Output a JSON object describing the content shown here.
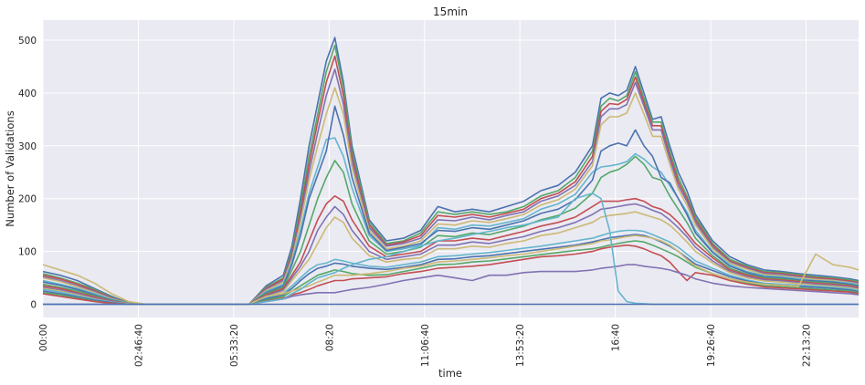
{
  "chart_data": {
    "type": "line",
    "title": "15min",
    "xlabel": "time",
    "ylabel": "Number of Validations",
    "x_tick_labels": [
      "00:00",
      "02:46:40",
      "05:33:20",
      "08:20",
      "11:06:40",
      "13:53:20",
      "16:40",
      "19:26:40",
      "22:13:20"
    ],
    "x_tick_seconds": [
      0,
      10000,
      20000,
      30000,
      40000,
      50000,
      60000,
      70000,
      80000
    ],
    "xlim_seconds": [
      0,
      85500
    ],
    "y_ticks": [
      0,
      100,
      200,
      300,
      400,
      500
    ],
    "ylim": [
      -25,
      538
    ],
    "grid": true,
    "background": "#EAEAF2",
    "palette": [
      "#4C72B0",
      "#55A868",
      "#C44E52",
      "#8172B2",
      "#CCB974",
      "#64B5CD"
    ],
    "sampling_interval": "15min",
    "x_hours": [
      0,
      0.5,
      1,
      1.5,
      2,
      2.5,
      3,
      3.5,
      4,
      4.5,
      5,
      5.5,
      6,
      6.5,
      7,
      7.25,
      7.5,
      7.75,
      8,
      8.25,
      8.5,
      8.75,
      9,
      9.5,
      10,
      10.5,
      11,
      11.5,
      12,
      12.5,
      13,
      13.5,
      14,
      14.5,
      15,
      15.5,
      16,
      16.25,
      16.5,
      16.75,
      17,
      17.25,
      17.5,
      17.75,
      18,
      18.25,
      18.5,
      18.75,
      19,
      19.5,
      20,
      20.5,
      21,
      21.5,
      22,
      22.5,
      23,
      23.5,
      23.75
    ],
    "series": [
      {
        "values": [
          62,
          55,
          45,
          30,
          15,
          3,
          0,
          0,
          0,
          0,
          0,
          0,
          0,
          35,
          55,
          110,
          200,
          300,
          380,
          460,
          505,
          420,
          300,
          160,
          120,
          125,
          140,
          185,
          175,
          180,
          175,
          185,
          195,
          215,
          225,
          250,
          300,
          390,
          400,
          395,
          405,
          450,
          400,
          350,
          355,
          300,
          250,
          215,
          170,
          120,
          90,
          75,
          65,
          62,
          58,
          55,
          52,
          48,
          45
        ]
      },
      {
        "values": [
          58,
          50,
          40,
          28,
          13,
          3,
          0,
          0,
          0,
          0,
          0,
          0,
          0,
          32,
          50,
          100,
          185,
          280,
          360,
          440,
          490,
          410,
          290,
          155,
          115,
          120,
          135,
          175,
          170,
          175,
          170,
          175,
          185,
          205,
          215,
          240,
          290,
          375,
          390,
          385,
          395,
          440,
          390,
          345,
          345,
          290,
          240,
          205,
          165,
          115,
          85,
          72,
          62,
          60,
          56,
          52,
          50,
          46,
          43
        ]
      },
      {
        "values": [
          55,
          48,
          38,
          26,
          12,
          2,
          0,
          0,
          0,
          0,
          0,
          0,
          0,
          30,
          48,
          95,
          175,
          265,
          345,
          420,
          470,
          395,
          280,
          150,
          112,
          118,
          130,
          168,
          165,
          170,
          165,
          172,
          180,
          200,
          210,
          232,
          280,
          365,
          380,
          378,
          388,
          430,
          382,
          338,
          338,
          282,
          232,
          200,
          160,
          112,
          82,
          70,
          60,
          58,
          54,
          50,
          48,
          44,
          41
        ]
      },
      {
        "values": [
          52,
          45,
          35,
          24,
          11,
          2,
          0,
          0,
          0,
          0,
          0,
          0,
          0,
          28,
          45,
          90,
          165,
          250,
          325,
          395,
          445,
          378,
          270,
          145,
          110,
          115,
          125,
          160,
          158,
          165,
          160,
          168,
          175,
          195,
          205,
          225,
          270,
          355,
          370,
          370,
          378,
          420,
          375,
          330,
          330,
          275,
          225,
          195,
          155,
          108,
          80,
          68,
          58,
          56,
          52,
          48,
          46,
          42,
          40
        ]
      },
      {
        "values": [
          50,
          43,
          33,
          22,
          10,
          2,
          0,
          0,
          0,
          0,
          0,
          0,
          0,
          26,
          42,
          85,
          155,
          235,
          300,
          360,
          410,
          360,
          258,
          140,
          105,
          110,
          120,
          152,
          150,
          158,
          155,
          162,
          170,
          188,
          198,
          218,
          262,
          340,
          355,
          355,
          362,
          400,
          360,
          318,
          318,
          265,
          218,
          188,
          150,
          105,
          78,
          66,
          56,
          54,
          50,
          47,
          45,
          41,
          38
        ]
      },
      {
        "values": [
          45,
          38,
          30,
          20,
          9,
          2,
          0,
          0,
          0,
          0,
          0,
          0,
          0,
          24,
          38,
          80,
          140,
          210,
          260,
          312,
          315,
          280,
          220,
          130,
          100,
          105,
          112,
          145,
          142,
          150,
          148,
          155,
          162,
          180,
          190,
          208,
          250,
          260,
          262,
          265,
          270,
          285,
          275,
          260,
          250,
          225,
          200,
          175,
          140,
          100,
          75,
          62,
          54,
          52,
          48,
          45,
          43,
          40,
          37
        ]
      },
      {
        "values": [
          42,
          36,
          28,
          18,
          8,
          1,
          0,
          0,
          0,
          0,
          0,
          0,
          0,
          22,
          35,
          75,
          130,
          200,
          245,
          290,
          375,
          320,
          240,
          135,
          102,
          108,
          115,
          140,
          138,
          145,
          142,
          150,
          158,
          172,
          180,
          198,
          235,
          290,
          300,
          305,
          300,
          330,
          300,
          280,
          240,
          230,
          200,
          170,
          135,
          98,
          72,
          60,
          52,
          50,
          46,
          44,
          42,
          38,
          35
        ]
      },
      {
        "values": [
          38,
          32,
          25,
          16,
          7,
          1,
          0,
          0,
          0,
          0,
          0,
          0,
          0,
          20,
          32,
          65,
          100,
          150,
          200,
          240,
          272,
          250,
          190,
          120,
          95,
          100,
          108,
          130,
          128,
          135,
          132,
          140,
          148,
          160,
          168,
          182,
          210,
          240,
          250,
          255,
          265,
          280,
          265,
          240,
          235,
          205,
          180,
          155,
          125,
          92,
          68,
          57,
          50,
          48,
          44,
          42,
          40,
          36,
          33
        ]
      },
      {
        "values": [
          35,
          30,
          22,
          14,
          6,
          1,
          0,
          0,
          0,
          0,
          0,
          0,
          0,
          18,
          30,
          55,
          80,
          120,
          160,
          190,
          205,
          195,
          160,
          110,
          90,
          95,
          100,
          120,
          120,
          125,
          122,
          130,
          138,
          148,
          155,
          165,
          185,
          195,
          195,
          195,
          198,
          200,
          195,
          185,
          180,
          170,
          155,
          135,
          115,
          88,
          65,
          55,
          48,
          46,
          43,
          40,
          38,
          35,
          32
        ]
      },
      {
        "values": [
          32,
          27,
          20,
          12,
          5,
          1,
          0,
          0,
          0,
          0,
          0,
          0,
          0,
          16,
          27,
          50,
          72,
          100,
          140,
          165,
          185,
          170,
          140,
          100,
          85,
          90,
          95,
          112,
          112,
          118,
          115,
          122,
          128,
          138,
          145,
          155,
          170,
          180,
          182,
          185,
          188,
          190,
          185,
          178,
          172,
          160,
          145,
          128,
          108,
          82,
          62,
          52,
          46,
          44,
          41,
          38,
          36,
          33,
          30
        ]
      },
      {
        "values": [
          30,
          25,
          18,
          10,
          4,
          1,
          0,
          0,
          0,
          0,
          0,
          0,
          0,
          14,
          24,
          45,
          65,
          85,
          115,
          145,
          165,
          155,
          125,
          92,
          80,
          85,
          88,
          105,
          105,
          110,
          108,
          115,
          120,
          130,
          135,
          145,
          155,
          165,
          168,
          170,
          172,
          175,
          170,
          165,
          160,
          150,
          135,
          118,
          100,
          78,
          60,
          50,
          44,
          42,
          39,
          36,
          34,
          31,
          28
        ]
      },
      {
        "values": [
          28,
          23,
          16,
          9,
          4,
          0,
          0,
          0,
          0,
          0,
          0,
          0,
          0,
          12,
          20,
          35,
          50,
          65,
          75,
          78,
          85,
          82,
          78,
          72,
          70,
          75,
          80,
          90,
          92,
          95,
          98,
          102,
          106,
          110,
          115,
          120,
          125,
          130,
          135,
          138,
          140,
          140,
          138,
          132,
          125,
          118,
          108,
          95,
          82,
          68,
          55,
          46,
          40,
          38,
          36,
          34,
          32,
          29,
          26
        ]
      },
      {
        "values": [
          25,
          20,
          14,
          8,
          3,
          0,
          0,
          0,
          0,
          0,
          0,
          0,
          0,
          10,
          18,
          30,
          45,
          58,
          68,
          72,
          78,
          76,
          72,
          68,
          66,
          70,
          75,
          85,
          86,
          90,
          92,
          96,
          100,
          104,
          108,
          112,
          118,
          122,
          126,
          128,
          130,
          132,
          130,
          125,
          118,
          110,
          100,
          88,
          76,
          64,
          52,
          44,
          38,
          36,
          34,
          32,
          30,
          27,
          24
        ]
      },
      {
        "values": [
          22,
          18,
          12,
          6,
          2,
          0,
          0,
          0,
          0,
          0,
          0,
          0,
          0,
          8,
          15,
          25,
          35,
          45,
          55,
          60,
          65,
          62,
          58,
          55,
          56,
          62,
          68,
          75,
          76,
          80,
          82,
          86,
          90,
          94,
          98,
          102,
          105,
          108,
          112,
          115,
          118,
          120,
          118,
          112,
          105,
          98,
          90,
          80,
          70,
          58,
          48,
          40,
          35,
          33,
          31,
          29,
          27,
          25,
          22
        ]
      },
      {
        "values": [
          20,
          15,
          10,
          5,
          2,
          0,
          0,
          0,
          0,
          0,
          0,
          0,
          0,
          6,
          12,
          18,
          22,
          28,
          35,
          40,
          45,
          45,
          48,
          50,
          52,
          58,
          62,
          68,
          70,
          72,
          75,
          80,
          85,
          90,
          92,
          95,
          100,
          105,
          108,
          110,
          112,
          110,
          105,
          98,
          92,
          80,
          62,
          45,
          60,
          55,
          45,
          38,
          33,
          31,
          29,
          27,
          25,
          23,
          20
        ]
      },
      {
        "values": [
          0,
          0,
          0,
          0,
          0,
          0,
          0,
          0,
          0,
          0,
          0,
          0,
          0,
          5,
          10,
          15,
          18,
          20,
          22,
          22,
          22,
          25,
          28,
          32,
          38,
          45,
          50,
          55,
          50,
          45,
          55,
          55,
          60,
          62,
          62,
          62,
          65,
          68,
          70,
          72,
          75,
          75,
          72,
          70,
          68,
          65,
          60,
          55,
          48,
          40,
          35,
          32,
          30,
          28,
          26,
          24,
          22,
          20,
          18
        ]
      },
      {
        "values": [
          75,
          65,
          55,
          40,
          20,
          5,
          0,
          0,
          0,
          0,
          0,
          0,
          0,
          15,
          20,
          25,
          30,
          35,
          42,
          48,
          55,
          55,
          55,
          58,
          62,
          68,
          72,
          80,
          82,
          85,
          88,
          92,
          95,
          100,
          105,
          110,
          115,
          120,
          122,
          125,
          128,
          130,
          128,
          125,
          120,
          112,
          100,
          85,
          72,
          58,
          48,
          42,
          38,
          36,
          34,
          95,
          75,
          70,
          65
        ]
      },
      {
        "values": [
          0,
          0,
          0,
          0,
          0,
          0,
          0,
          0,
          0,
          0,
          0,
          0,
          0,
          5,
          10,
          20,
          28,
          40,
          50,
          55,
          60,
          68,
          75,
          85,
          90,
          100,
          110,
          120,
          125,
          132,
          138,
          145,
          150,
          158,
          165,
          200,
          210,
          200,
          140,
          25,
          5,
          2,
          1,
          0,
          0,
          0,
          0,
          0,
          0,
          0,
          0,
          0,
          0,
          0,
          0,
          0,
          0,
          0,
          0
        ]
      },
      {
        "values": [
          0,
          0,
          0,
          0,
          0,
          0,
          0,
          0,
          0,
          0,
          0,
          0,
          0,
          0,
          0,
          0,
          0,
          0,
          0,
          0,
          0,
          0,
          0,
          0,
          0,
          0,
          0,
          0,
          0,
          0,
          0,
          0,
          0,
          0,
          0,
          0,
          0,
          0,
          0,
          0,
          0,
          0,
          0,
          0,
          0,
          0,
          0,
          0,
          0,
          0,
          0,
          0,
          0,
          0,
          0,
          0,
          0,
          0,
          0
        ]
      }
    ]
  }
}
